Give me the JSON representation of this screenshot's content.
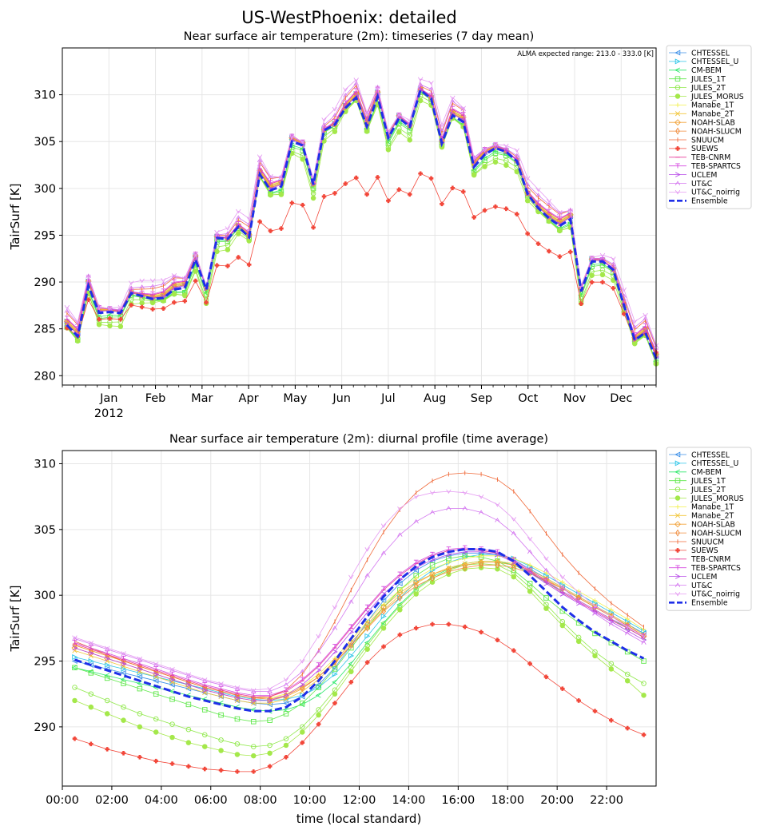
{
  "figure": {
    "suptitle": "US-WestPhoenix: detailed"
  },
  "chart_data": [
    {
      "type": "line",
      "title": "Near surface air temperature (2m): timeseries (7 day mean)",
      "annotation": "ALMA expected range: 213.0 - 333.0 [K]",
      "ylabel": "TairSurf [K]",
      "xlabel": "",
      "ylim": [
        279,
        315
      ],
      "yticks": [
        280,
        285,
        290,
        295,
        300,
        305,
        310
      ],
      "xlim": [
        -0.5,
        12.25
      ],
      "x_tick_labels": [
        {
          "pos": 0.5,
          "label": "Jan",
          "sub": "2012"
        },
        {
          "pos": 1.5,
          "label": "Feb"
        },
        {
          "pos": 2.5,
          "label": "Mar"
        },
        {
          "pos": 3.5,
          "label": "Apr"
        },
        {
          "pos": 4.5,
          "label": "May"
        },
        {
          "pos": 5.5,
          "label": "Jun"
        },
        {
          "pos": 6.5,
          "label": "Jul"
        },
        {
          "pos": 7.5,
          "label": "Aug"
        },
        {
          "pos": 8.5,
          "label": "Sep"
        },
        {
          "pos": 9.5,
          "label": "Oct"
        },
        {
          "pos": 10.5,
          "label": "Nov"
        },
        {
          "pos": 11.5,
          "label": "Dec"
        }
      ],
      "grid": true,
      "legend_position": "outside-right",
      "ensemble": [
        285.4,
        284.2,
        289.6,
        286.7,
        286.8,
        286.7,
        288.8,
        288.5,
        288.2,
        288.3,
        289.2,
        289.4,
        292.4,
        289.2,
        294.7,
        294.6,
        295.9,
        294.8,
        301.5,
        299.8,
        300.2,
        305.0,
        304.6,
        300.4,
        306.2,
        306.8,
        308.6,
        309.7,
        306.6,
        309.8,
        305.4,
        307.5,
        306.6,
        310.5,
        309.6,
        304.8,
        307.8,
        307.1,
        302.3,
        303.6,
        304.3,
        303.9,
        302.9,
        299.4,
        297.9,
        296.8,
        296.0,
        296.7,
        289.0,
        292.2,
        292.2,
        291.3,
        287.5,
        283.8,
        284.6,
        281.8
      ]
    },
    {
      "type": "line",
      "title": "Near surface air temperature (2m): diurnal profile (time average)",
      "ylabel": "TairSurf [K]",
      "xlabel": "time (local standard)",
      "ylim": [
        285.5,
        311
      ],
      "yticks": [
        290,
        295,
        300,
        305,
        310
      ],
      "xlim": [
        0,
        24
      ],
      "x_tick_labels": [
        "00:00",
        "02:00",
        "04:00",
        "06:00",
        "08:00",
        "10:00",
        "12:00",
        "14:00",
        "16:00",
        "18:00",
        "20:00",
        "22:00"
      ],
      "grid": true,
      "legend_position": "outside-right",
      "series": [
        {
          "name": "CHTESSEL",
          "values": [
            295.0,
            294.7,
            294.4,
            294.1,
            293.8,
            293.5,
            293.2,
            292.9,
            292.6,
            292.3,
            292.0,
            291.8,
            291.7,
            291.8,
            292.3,
            293.2,
            294.5,
            296.2,
            298.0,
            299.6,
            300.9,
            301.9,
            302.6,
            303.0,
            303.2,
            303.2,
            303.1,
            302.7,
            302.0,
            301.3,
            300.6,
            299.9,
            299.2,
            298.5,
            297.8,
            297.1
          ]
        },
        {
          "name": "CHTESSEL_U",
          "values": [
            295.3,
            295.0,
            294.7,
            294.4,
            294.1,
            293.8,
            293.5,
            293.2,
            292.9,
            292.6,
            292.3,
            292.1,
            292.0,
            292.1,
            292.4,
            293.0,
            294.0,
            295.4,
            296.9,
            298.4,
            299.8,
            301.0,
            301.9,
            302.5,
            302.9,
            303.1,
            303.1,
            302.8,
            302.2,
            301.5,
            300.8,
            300.1,
            299.4,
            298.7,
            298.0,
            297.3
          ]
        },
        {
          "name": "CM-BEM",
          "values": [
            294.5,
            294.2,
            293.9,
            293.6,
            293.3,
            293.0,
            292.7,
            292.4,
            292.1,
            291.8,
            291.5,
            291.3,
            291.2,
            291.3,
            291.7,
            292.4,
            293.4,
            294.8,
            296.4,
            297.9,
            299.3,
            300.5,
            301.4,
            302.0,
            302.4,
            302.6,
            302.6,
            302.3,
            301.7,
            301.0,
            300.3,
            299.6,
            298.9,
            298.2,
            297.5,
            296.8
          ]
        },
        {
          "name": "JULES_1T",
          "values": [
            294.5,
            294.1,
            293.7,
            293.3,
            292.9,
            292.5,
            292.1,
            291.7,
            291.3,
            290.9,
            290.6,
            290.4,
            290.5,
            291.0,
            291.8,
            293.0,
            294.4,
            296.0,
            297.6,
            299.1,
            300.4,
            301.5,
            302.3,
            302.8,
            303.0,
            302.9,
            302.6,
            301.9,
            300.9,
            299.8,
            298.8,
            297.9,
            297.1,
            296.4,
            295.7,
            295.0
          ]
        },
        {
          "name": "JULES_2T",
          "values": [
            293.0,
            292.5,
            292.0,
            291.5,
            291.0,
            290.6,
            290.2,
            289.8,
            289.4,
            289.0,
            288.7,
            288.5,
            288.6,
            289.1,
            290.0,
            291.3,
            292.8,
            294.5,
            296.2,
            297.8,
            299.2,
            300.4,
            301.3,
            301.9,
            302.3,
            302.4,
            302.3,
            301.7,
            300.6,
            299.3,
            298.0,
            296.8,
            295.7,
            294.8,
            294.0,
            293.3
          ]
        },
        {
          "name": "JULES_MORUS",
          "values": [
            292.0,
            291.5,
            291.0,
            290.5,
            290.0,
            289.6,
            289.2,
            288.8,
            288.5,
            288.2,
            287.9,
            287.8,
            288.0,
            288.6,
            289.6,
            290.9,
            292.5,
            294.2,
            295.9,
            297.5,
            298.9,
            300.1,
            301.0,
            301.6,
            302.0,
            302.1,
            302.0,
            301.4,
            300.3,
            299.0,
            297.7,
            296.5,
            295.4,
            294.4,
            293.5,
            292.4
          ]
        },
        {
          "name": "Manabe_1T",
          "values": [
            296.2,
            295.8,
            295.4,
            295.0,
            294.6,
            294.2,
            293.8,
            293.4,
            293.0,
            292.7,
            292.4,
            292.2,
            292.2,
            292.5,
            293.1,
            294.0,
            295.2,
            296.6,
            298.0,
            299.3,
            300.4,
            301.3,
            302.0,
            302.5,
            302.8,
            303.0,
            303.0,
            302.8,
            302.3,
            301.7,
            301.0,
            300.3,
            299.6,
            298.9,
            298.2,
            297.4
          ]
        },
        {
          "name": "Manabe_2T",
          "values": [
            295.8,
            295.4,
            295.0,
            294.6,
            294.2,
            293.8,
            293.4,
            293.0,
            292.6,
            292.3,
            292.0,
            291.8,
            291.8,
            292.1,
            292.7,
            293.6,
            294.8,
            296.2,
            297.6,
            298.9,
            300.0,
            300.9,
            301.6,
            302.1,
            302.4,
            302.6,
            302.6,
            302.4,
            301.9,
            301.3,
            300.6,
            299.9,
            299.2,
            298.5,
            297.8,
            297.0
          ]
        },
        {
          "name": "NOAH-SLAB",
          "values": [
            296.0,
            295.6,
            295.2,
            294.8,
            294.4,
            294.0,
            293.6,
            293.2,
            292.8,
            292.5,
            292.2,
            292.0,
            292.0,
            292.3,
            292.9,
            293.8,
            295.0,
            296.4,
            297.8,
            299.1,
            300.2,
            301.0,
            301.6,
            302.0,
            302.3,
            302.5,
            302.5,
            302.3,
            301.8,
            301.2,
            300.5,
            299.8,
            299.1,
            298.4,
            297.7,
            296.9
          ]
        },
        {
          "name": "NOAH-SLUCM",
          "values": [
            296.2,
            295.8,
            295.4,
            295.0,
            294.6,
            294.2,
            293.8,
            293.4,
            293.0,
            292.7,
            292.4,
            292.2,
            292.1,
            292.4,
            293.0,
            293.8,
            294.9,
            296.2,
            297.5,
            298.8,
            299.8,
            300.7,
            301.3,
            301.8,
            302.1,
            302.3,
            302.3,
            302.1,
            301.7,
            301.1,
            300.5,
            299.8,
            299.1,
            298.4,
            297.7,
            296.9
          ]
        },
        {
          "name": "SNUUCM",
          "values": [
            296.5,
            296.0,
            295.5,
            295.0,
            294.6,
            294.2,
            293.8,
            293.4,
            293.0,
            292.7,
            292.4,
            292.2,
            292.3,
            292.8,
            294.0,
            295.8,
            298.0,
            300.4,
            302.7,
            304.8,
            306.5,
            307.8,
            308.7,
            309.2,
            309.3,
            309.2,
            308.8,
            307.9,
            306.4,
            304.7,
            303.1,
            301.7,
            300.5,
            299.4,
            298.5,
            297.6
          ]
        },
        {
          "name": "SUEWS",
          "values": [
            289.1,
            288.7,
            288.3,
            288.0,
            287.7,
            287.4,
            287.2,
            287.0,
            286.8,
            286.7,
            286.6,
            286.6,
            287.0,
            287.7,
            288.8,
            290.2,
            291.8,
            293.4,
            294.9,
            296.1,
            297.0,
            297.5,
            297.8,
            297.8,
            297.6,
            297.2,
            296.6,
            295.8,
            294.8,
            293.8,
            292.9,
            292.0,
            291.2,
            290.5,
            289.9,
            289.4
          ]
        },
        {
          "name": "TEB-CNRM",
          "values": [
            296.3,
            295.9,
            295.5,
            295.1,
            294.7,
            294.3,
            293.9,
            293.5,
            293.1,
            292.8,
            292.5,
            292.3,
            292.3,
            292.7,
            293.5,
            294.6,
            296.0,
            297.5,
            299.0,
            300.4,
            301.5,
            302.4,
            303.0,
            303.4,
            303.5,
            303.4,
            303.2,
            302.6,
            301.8,
            301.0,
            300.2,
            299.5,
            298.8,
            298.1,
            297.5,
            296.8
          ]
        },
        {
          "name": "TEB-SPARTCS",
          "values": [
            296.4,
            296.0,
            295.6,
            295.2,
            294.8,
            294.4,
            294.0,
            293.6,
            293.2,
            292.9,
            292.6,
            292.4,
            292.4,
            292.8,
            293.6,
            294.7,
            296.1,
            297.6,
            299.1,
            300.5,
            301.6,
            302.5,
            303.1,
            303.5,
            303.6,
            303.5,
            303.3,
            302.7,
            301.9,
            301.1,
            300.3,
            299.6,
            298.9,
            298.2,
            297.6,
            296.9
          ]
        },
        {
          "name": "UCLEM",
          "values": [
            296.0,
            295.6,
            295.2,
            294.8,
            294.4,
            294.0,
            293.6,
            293.2,
            292.8,
            292.5,
            292.2,
            292.0,
            292.0,
            292.4,
            293.2,
            294.3,
            295.7,
            297.2,
            298.7,
            300.1,
            301.2,
            302.1,
            302.7,
            303.1,
            303.3,
            303.3,
            303.1,
            302.5,
            301.7,
            300.9,
            300.1,
            299.4,
            298.7,
            298.0,
            297.3,
            296.6
          ]
        },
        {
          "name": "UT&C",
          "values": [
            296.7,
            296.3,
            295.9,
            295.5,
            295.1,
            294.7,
            294.3,
            293.9,
            293.5,
            293.2,
            292.9,
            292.7,
            292.7,
            293.2,
            294.2,
            295.7,
            297.5,
            299.5,
            301.5,
            303.2,
            304.6,
            305.6,
            306.3,
            306.6,
            306.6,
            306.3,
            305.7,
            304.7,
            303.3,
            301.9,
            300.6,
            299.5,
            298.6,
            297.8,
            297.1,
            296.4
          ]
        },
        {
          "name": "UT&C_noirrig",
          "values": [
            296.8,
            296.4,
            296.0,
            295.6,
            295.2,
            294.8,
            294.4,
            294.0,
            293.6,
            293.3,
            293.0,
            292.8,
            292.9,
            293.6,
            295.0,
            296.9,
            299.1,
            301.4,
            303.5,
            305.3,
            306.6,
            307.5,
            307.8,
            307.9,
            307.8,
            307.5,
            306.9,
            305.8,
            304.3,
            302.8,
            301.4,
            300.2,
            299.2,
            298.4,
            297.6,
            296.9
          ]
        },
        {
          "name": "Ensemble",
          "values": [
            295.1,
            294.7,
            294.3,
            293.9,
            293.5,
            293.1,
            292.7,
            292.3,
            292.0,
            291.7,
            291.4,
            291.2,
            291.2,
            291.5,
            292.3,
            293.5,
            295.0,
            296.7,
            298.4,
            299.9,
            301.2,
            302.2,
            302.9,
            303.3,
            303.5,
            303.5,
            303.3,
            302.6,
            301.5,
            300.3,
            299.1,
            298.1,
            297.2,
            296.5,
            295.8,
            295.2
          ]
        }
      ]
    }
  ],
  "legend": [
    {
      "name": "CHTESSEL",
      "color": "#3b8fe8",
      "marker": "tri-left"
    },
    {
      "name": "CHTESSEL_U",
      "color": "#2fc6e8",
      "marker": "tri-right"
    },
    {
      "name": "CM-BEM",
      "color": "#2ce86a",
      "marker": "less"
    },
    {
      "name": "JULES_1T",
      "color": "#5fe84a",
      "marker": "square"
    },
    {
      "name": "JULES_2T",
      "color": "#8fe84a",
      "marker": "hexagon"
    },
    {
      "name": "JULES_MORUS",
      "color": "#a4e84a",
      "marker": "octagon"
    },
    {
      "name": "Manabe_1T",
      "color": "#f2f04a",
      "marker": "plus"
    },
    {
      "name": "Manabe_2T",
      "color": "#f2c63a",
      "marker": "x"
    },
    {
      "name": "NOAH-SLAB",
      "color": "#f2a33a",
      "marker": "diamond"
    },
    {
      "name": "NOAH-SLUCM",
      "color": "#f08a3a",
      "marker": "thin-diamond"
    },
    {
      "name": "SNUUCM",
      "color": "#f06a3a",
      "marker": "vline"
    },
    {
      "name": "SUEWS",
      "color": "#f2473a",
      "marker": "plus-filled"
    },
    {
      "name": "TEB-CNRM",
      "color": "#e83a9a",
      "marker": "hline"
    },
    {
      "name": "TEB-SPARTCS",
      "color": "#d54ae0",
      "marker": "tri-down"
    },
    {
      "name": "UCLEM",
      "color": "#b74ae8",
      "marker": "greater"
    },
    {
      "name": "UT&C",
      "color": "#d478f0",
      "marker": "caret"
    },
    {
      "name": "UT&C_noirrig",
      "color": "#e59cf2",
      "marker": "v"
    },
    {
      "name": "Ensemble",
      "color": "#1f2fe8",
      "marker": "dash"
    }
  ],
  "colors": {
    "ensemble": "#1f2fe8",
    "suews": "#f2473a",
    "grid": "#e6e6e6",
    "snuucm": "#f06a3a"
  }
}
